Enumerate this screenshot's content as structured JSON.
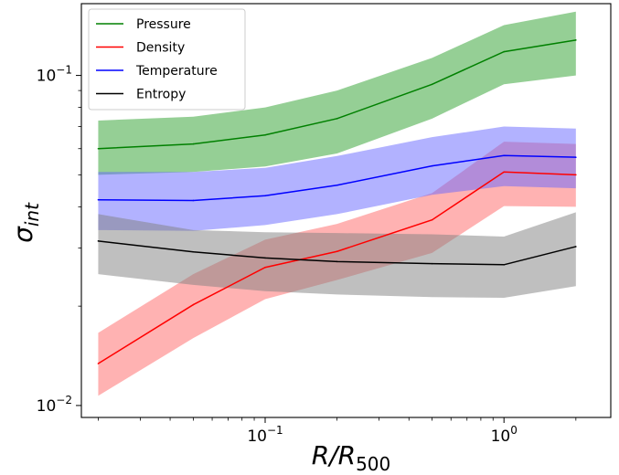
{
  "chart_data": {
    "type": "line",
    "xscale": "log",
    "yscale": "log",
    "xlim": [
      0.017,
      2.8
    ],
    "ylim": [
      0.0092,
      0.165
    ],
    "x_ticks": [
      {
        "value": 0.1,
        "base": "10",
        "exp": "−1"
      },
      {
        "value": 1,
        "base": "10",
        "exp": "0"
      }
    ],
    "y_ticks": [
      {
        "value": 0.01,
        "base": "10",
        "exp": "−2"
      },
      {
        "value": 0.1,
        "base": "10",
        "exp": "−1"
      }
    ],
    "xlabel": {
      "main": "R/R",
      "sub": "500"
    },
    "ylabel": {
      "main": "σ",
      "sub": "int"
    },
    "legend": {
      "placement": "top-left"
    },
    "grid": false,
    "x": [
      0.02,
      0.05,
      0.1,
      0.2,
      0.5,
      1.0,
      2.0
    ],
    "series": [
      {
        "name": "Pressure",
        "color": "#008000",
        "band_color": "#2ca02c",
        "values": [
          0.06,
          0.062,
          0.066,
          0.074,
          0.094,
          0.118,
          0.128
        ],
        "lower": [
          0.05,
          0.051,
          0.053,
          0.058,
          0.074,
          0.094,
          0.1
        ],
        "upper": [
          0.073,
          0.075,
          0.08,
          0.09,
          0.113,
          0.142,
          0.156
        ]
      },
      {
        "name": "Density",
        "color": "#ff0000",
        "band_color": "#ff6666",
        "values": [
          0.0134,
          0.0202,
          0.0262,
          0.0293,
          0.0365,
          0.051,
          0.05
        ],
        "lower": [
          0.0107,
          0.016,
          0.021,
          0.024,
          0.029,
          0.0402,
          0.04
        ],
        "upper": [
          0.0166,
          0.025,
          0.0318,
          0.0355,
          0.044,
          0.063,
          0.062
        ]
      },
      {
        "name": "Temperature",
        "color": "#0000ff",
        "band_color": "#6666ff",
        "values": [
          0.042,
          0.0418,
          0.0432,
          0.0465,
          0.0532,
          0.0572,
          0.0565
        ],
        "lower": [
          0.034,
          0.0338,
          0.0352,
          0.038,
          0.0435,
          0.0462,
          0.0455
        ],
        "upper": [
          0.051,
          0.051,
          0.0525,
          0.057,
          0.065,
          0.07,
          0.069
        ]
      },
      {
        "name": "Entropy",
        "color": "#000000",
        "band_color": "#808080",
        "values": [
          0.0315,
          0.0292,
          0.028,
          0.0273,
          0.0269,
          0.0267,
          0.0303
        ],
        "lower": [
          0.025,
          0.0232,
          0.0222,
          0.0217,
          0.0213,
          0.0212,
          0.023
        ],
        "upper": [
          0.038,
          0.034,
          0.0335,
          0.0333,
          0.033,
          0.0325,
          0.0385
        ]
      }
    ]
  }
}
